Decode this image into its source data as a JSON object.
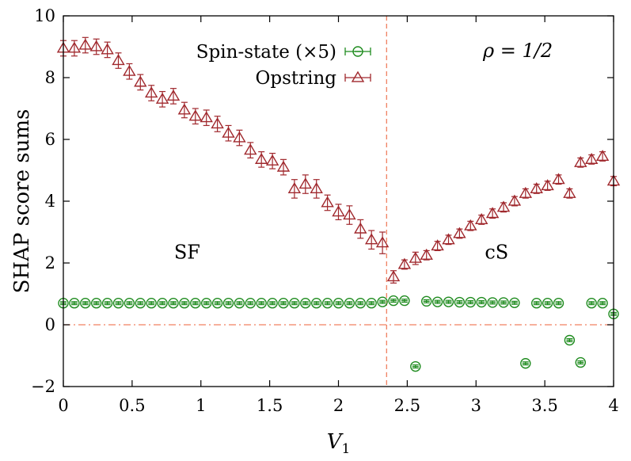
{
  "chart_data": {
    "type": "scatter",
    "title": "",
    "xlabel": "V1",
    "xlabel_main": "V",
    "xlabel_sub": "1",
    "ylabel": "SHAP score sums",
    "xlim": [
      0,
      4
    ],
    "ylim": [
      -2,
      10
    ],
    "x_ticks": [
      0,
      0.5,
      1,
      1.5,
      2,
      2.5,
      3,
      3.5,
      4
    ],
    "x_tick_labels": [
      "0",
      "0.5",
      "1",
      "1.5",
      "2",
      "2.5",
      "3",
      "3.5",
      "4"
    ],
    "y_ticks": [
      -2,
      0,
      2,
      4,
      6,
      8,
      10
    ],
    "y_tick_labels": [
      "−2",
      "0",
      "2",
      "4",
      "6",
      "8",
      "10"
    ],
    "grid": false,
    "legend_position": "top-center",
    "annotation": "ρ = 1/2",
    "region_labels": [
      {
        "text": "SF",
        "x": 0.9,
        "y": 2.35
      },
      {
        "text": "cS",
        "x": 3.15,
        "y": 2.35
      }
    ],
    "reference_lines": {
      "vertical_x": 2.35,
      "horizontal_y": 0,
      "color": "#f08060"
    },
    "series": [
      {
        "name": "Spin-state (×5)",
        "marker": "circle",
        "color": "#1e8b1e",
        "x": [
          0,
          0.08,
          0.16,
          0.24,
          0.32,
          0.4,
          0.48,
          0.56,
          0.64,
          0.72,
          0.8,
          0.88,
          0.96,
          1.04,
          1.12,
          1.2,
          1.28,
          1.36,
          1.44,
          1.52,
          1.6,
          1.68,
          1.76,
          1.84,
          1.92,
          2.0,
          2.08,
          2.16,
          2.24,
          2.32,
          2.4,
          2.48,
          2.56,
          2.64,
          2.72,
          2.8,
          2.88,
          2.96,
          3.04,
          3.12,
          3.2,
          3.28,
          3.36,
          3.44,
          3.52,
          3.6,
          3.68,
          3.76,
          3.84,
          3.92,
          4.0
        ],
        "y": [
          0.7,
          0.7,
          0.7,
          0.7,
          0.7,
          0.7,
          0.7,
          0.7,
          0.7,
          0.7,
          0.7,
          0.7,
          0.7,
          0.7,
          0.7,
          0.7,
          0.7,
          0.7,
          0.7,
          0.7,
          0.7,
          0.7,
          0.7,
          0.7,
          0.7,
          0.7,
          0.7,
          0.7,
          0.7,
          0.74,
          0.78,
          0.78,
          -1.35,
          0.76,
          0.74,
          0.74,
          0.73,
          0.73,
          0.73,
          0.72,
          0.72,
          0.71,
          -1.25,
          0.7,
          0.7,
          0.7,
          -0.5,
          -1.22,
          0.7,
          0.7,
          0.35
        ],
        "yerr": [
          0.05,
          0.05,
          0.05,
          0.05,
          0.05,
          0.05,
          0.05,
          0.05,
          0.05,
          0.05,
          0.05,
          0.05,
          0.05,
          0.05,
          0.05,
          0.05,
          0.05,
          0.05,
          0.05,
          0.05,
          0.05,
          0.05,
          0.05,
          0.05,
          0.05,
          0.05,
          0.05,
          0.05,
          0.05,
          0.05,
          0.05,
          0.05,
          0.05,
          0.05,
          0.05,
          0.05,
          0.05,
          0.05,
          0.05,
          0.05,
          0.05,
          0.05,
          0.05,
          0.05,
          0.05,
          0.05,
          0.05,
          0.05,
          0.05,
          0.05,
          0.05
        ]
      },
      {
        "name": "Opstring",
        "marker": "triangle",
        "color": "#a0282d",
        "x": [
          0,
          0.08,
          0.16,
          0.24,
          0.32,
          0.4,
          0.48,
          0.56,
          0.64,
          0.72,
          0.8,
          0.88,
          0.96,
          1.04,
          1.12,
          1.2,
          1.28,
          1.36,
          1.44,
          1.52,
          1.6,
          1.68,
          1.76,
          1.84,
          1.92,
          2.0,
          2.08,
          2.16,
          2.24,
          2.32,
          2.4,
          2.48,
          2.56,
          2.64,
          2.72,
          2.8,
          2.88,
          2.96,
          3.04,
          3.12,
          3.2,
          3.28,
          3.36,
          3.44,
          3.52,
          3.6,
          3.68,
          3.76,
          3.84,
          3.92,
          4.0
        ],
        "y": [
          8.95,
          8.95,
          9.05,
          9.0,
          8.9,
          8.55,
          8.2,
          7.85,
          7.5,
          7.3,
          7.4,
          6.95,
          6.75,
          6.7,
          6.5,
          6.2,
          6.05,
          5.65,
          5.35,
          5.3,
          5.1,
          4.4,
          4.55,
          4.4,
          3.95,
          3.65,
          3.55,
          3.1,
          2.75,
          2.65,
          1.55,
          1.95,
          2.15,
          2.25,
          2.55,
          2.75,
          2.95,
          3.2,
          3.4,
          3.6,
          3.8,
          4.0,
          4.25,
          4.4,
          4.5,
          4.7,
          4.25,
          5.25,
          5.35,
          5.45,
          4.65
        ],
        "yerr": [
          0.25,
          0.25,
          0.25,
          0.25,
          0.25,
          0.25,
          0.25,
          0.25,
          0.25,
          0.25,
          0.25,
          0.25,
          0.25,
          0.25,
          0.25,
          0.25,
          0.25,
          0.25,
          0.25,
          0.25,
          0.25,
          0.3,
          0.3,
          0.3,
          0.25,
          0.25,
          0.3,
          0.3,
          0.3,
          0.35,
          0.2,
          0.15,
          0.2,
          0.15,
          0.15,
          0.15,
          0.15,
          0.15,
          0.15,
          0.15,
          0.15,
          0.15,
          0.15,
          0.15,
          0.15,
          0.15,
          0.15,
          0.15,
          0.15,
          0.15,
          0.15
        ]
      }
    ]
  }
}
